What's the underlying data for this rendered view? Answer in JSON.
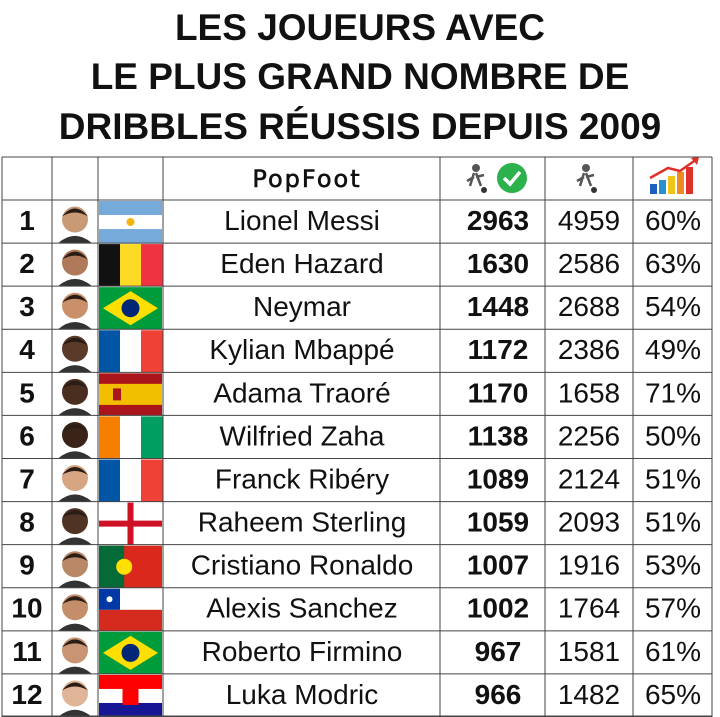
{
  "title": {
    "lines": [
      "LES JOUEURS AVEC",
      "LE PLUS GRAND NOMBRE DE",
      "DRIBBLES RÉUSSIS DEPUIS 2009"
    ]
  },
  "header": {
    "logo": "PopFoot"
  },
  "table": {
    "rows": [
      [
        "1",
        "Lionel Messi",
        "2963",
        "4959",
        "60%"
      ],
      [
        "2",
        "Eden Hazard",
        "1630",
        "2586",
        "63%"
      ],
      [
        "3",
        "Neymar",
        "1448",
        "2688",
        "54%"
      ],
      [
        "4",
        "Kylian Mbappé",
        "1172",
        "2386",
        "49%"
      ],
      [
        "5",
        "Adama Traoré",
        "1170",
        "1658",
        "71%"
      ],
      [
        "6",
        "Wilfried Zaha",
        "1138",
        "2256",
        "50%"
      ],
      [
        "7",
        "Franck Ribéry",
        "1089",
        "2124",
        "51%"
      ],
      [
        "8",
        "Raheem Sterling",
        "1059",
        "2093",
        "51%"
      ],
      [
        "9",
        "Cristiano Ronaldo",
        "1007",
        "1916",
        "53%"
      ],
      [
        "10",
        "Alexis Sanchez",
        "1002",
        "1764",
        "57%"
      ],
      [
        "11",
        "Roberto Firmino",
        "967",
        "1581",
        "61%"
      ],
      [
        "12",
        "Luka Modric",
        "966",
        "1482",
        "65%"
      ]
    ]
  }
}
